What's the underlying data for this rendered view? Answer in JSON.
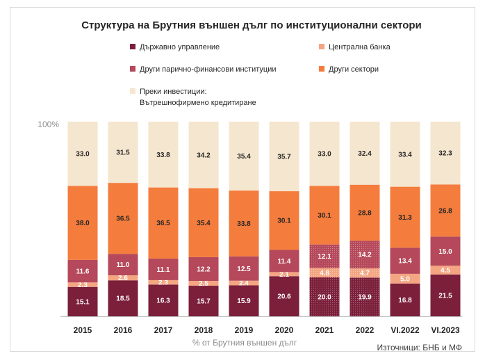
{
  "chart_data": {
    "type": "bar",
    "stacked": true,
    "title": "Структура на Брутния външен дълг по институционални сектори",
    "categories": [
      "2015",
      "2016",
      "2017",
      "2018",
      "2019",
      "2020",
      "2021",
      "2022",
      "VI.2022",
      "VI.2023"
    ],
    "ytick_label": "100%",
    "ylim": [
      0,
      100
    ],
    "xlabel": "% от Брутния външен дълг",
    "source": "Източници: БНБ и МФ",
    "grid": false,
    "legend_position": "top",
    "series": [
      {
        "name": "Държавно управление",
        "color": "#7b1f3a",
        "label_color": "#ffffff",
        "values": [
          15.1,
          18.5,
          16.3,
          15.7,
          15.9,
          20.6,
          20.0,
          19.9,
          16.8,
          21.5
        ]
      },
      {
        "name": "Централна банка",
        "color": "#f4a582",
        "label_color": "#ffffff",
        "values": [
          2.3,
          2.6,
          2.3,
          2.5,
          2.4,
          2.1,
          4.8,
          4.7,
          5.0,
          4.5
        ]
      },
      {
        "name": "Други парично-финансови институции",
        "color": "#b5485a",
        "label_color": "#ffffff",
        "values": [
          11.6,
          11.0,
          11.1,
          12.2,
          12.5,
          11.4,
          12.1,
          14.2,
          13.4,
          15.0
        ]
      },
      {
        "name": "Други сектори",
        "color": "#f47c3c",
        "label_color": "#262626",
        "values": [
          38.0,
          36.5,
          36.5,
          35.4,
          33.8,
          30.1,
          30.1,
          28.8,
          31.3,
          26.8
        ]
      },
      {
        "name": "Преки инвестиции: Вътрешнофирмено кредитиране",
        "legend_lines": [
          "Преки инвестиции:",
          "Вътрешнофирмено кредитиране"
        ],
        "color": "#f5e6cf",
        "label_color": "#262626",
        "values": [
          33.0,
          31.5,
          33.8,
          34.2,
          35.4,
          35.7,
          33.0,
          32.4,
          33.4,
          32.3
        ]
      }
    ],
    "hatched_categories": [
      "2021",
      "2022"
    ]
  }
}
